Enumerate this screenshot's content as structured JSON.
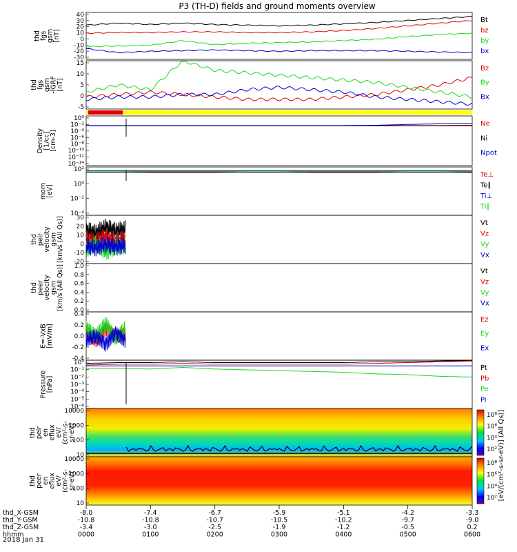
{
  "title": "P3 (TH-D) fields and ground moments overview",
  "date": "2018 Jan 31",
  "colors": {
    "black": "#000000",
    "red": "#e00000",
    "green": "#18d818",
    "blue": "#0000d0",
    "yellow": "#ffff00"
  },
  "chart_data": [
    {
      "type": "line",
      "ylabel": [
        "thd",
        "fgs",
        "gsm",
        "[nT]"
      ],
      "ylim": [
        -30,
        40
      ],
      "yticks": [
        "40",
        "30",
        "20",
        "10",
        "0",
        "-10",
        "-20",
        "-30"
      ],
      "legend": [
        "Bt",
        "bz",
        "by",
        "bx"
      ],
      "series": [
        {
          "name": "Bt",
          "color": "black",
          "values": [
            21,
            24,
            22,
            24,
            22,
            21,
            20,
            21,
            23,
            25,
            28,
            31,
            34
          ]
        },
        {
          "name": "bz",
          "color": "red",
          "values": [
            9,
            10,
            10,
            11,
            11,
            10,
            10,
            11,
            13,
            16,
            20,
            24,
            28
          ]
        },
        {
          "name": "by",
          "color": "green",
          "values": [
            -11,
            -10,
            -9,
            -2,
            -8,
            -6,
            -5,
            -4,
            -2,
            0,
            4,
            7,
            9
          ]
        },
        {
          "name": "bx",
          "color": "blue",
          "values": [
            -14,
            -20,
            -18,
            -17,
            -16,
            -17,
            -18,
            -17,
            -17,
            -17,
            -18,
            -19,
            -20
          ]
        }
      ]
    },
    {
      "type": "line",
      "ylabel": [
        "thd",
        "fgs",
        "gsm",
        "-IGRF",
        "[nT]"
      ],
      "ylim": [
        -5,
        15
      ],
      "yticks": [
        "15",
        "10",
        "5",
        "0",
        "-5"
      ],
      "legend": [
        "Bz",
        "By",
        "Bx"
      ],
      "series": [
        {
          "name": "Bz",
          "color": "red",
          "values": [
            0,
            1,
            2,
            1,
            0,
            -1,
            -1,
            -1,
            0,
            1,
            3,
            5,
            8
          ]
        },
        {
          "name": "By",
          "color": "green",
          "values": [
            2,
            5,
            3,
            15,
            11,
            10,
            9,
            8,
            7,
            6,
            4,
            2,
            0
          ]
        },
        {
          "name": "Bx",
          "color": "blue",
          "values": [
            -1,
            0,
            0,
            1,
            1,
            3,
            4,
            3,
            2,
            0,
            -1,
            -2,
            -3
          ]
        }
      ]
    },
    {
      "type": "line",
      "ylabel": [
        "Density",
        "[1/cc]",
        "[cm-3]"
      ],
      "ylim": [
        -14,
        3
      ],
      "yticks": [
        "10⁰",
        "10⁻²",
        "10⁻⁴",
        "10⁻⁶",
        "10⁻⁸",
        "10⁻¹⁰",
        "10⁻¹²",
        "10⁻¹⁴"
      ],
      "legend": [
        "Ne",
        "Ni",
        "Npot"
      ],
      "series": [
        {
          "name": "Ne",
          "color": "red",
          "values": [
            -0.3,
            -0.3,
            -0.3,
            -0.3,
            -0.3,
            -0.3,
            -0.3,
            -0.3,
            -0.3,
            -0.3,
            -0.3,
            -0.3,
            -0.2
          ]
        },
        {
          "name": "Ni",
          "color": "black",
          "values": [
            -0.4,
            -0.4,
            -0.4,
            -0.4,
            -0.4,
            -0.4,
            -0.4,
            -0.4,
            -0.4,
            -0.4,
            -0.4,
            -0.4,
            -0.4
          ]
        },
        {
          "name": "Npot",
          "color": "blue",
          "values": [
            -0.3,
            -0.3,
            -0.3,
            -0.3,
            -0.3,
            -0.3,
            -0.3,
            -0.3,
            -0.3,
            -0.2,
            0.1,
            0.3,
            0.5
          ]
        }
      ]
    },
    {
      "type": "line",
      "ylabel": [
        "mom",
        "[eV]"
      ],
      "ylim": [
        -5,
        3
      ],
      "yticks": [
        "10²",
        "10⁰",
        "10⁻²",
        "10⁻⁴"
      ],
      "legend": [
        "Te⊥",
        "Te∥",
        "Ti⊥",
        "Ti∥"
      ],
      "series": [
        {
          "name": "Te⊥",
          "color": "red",
          "values": [
            2.3,
            2.3,
            2.2,
            2.2,
            2.2,
            2.3,
            2.3,
            2.2,
            2.2,
            2.2,
            2.3,
            2.3,
            2.2
          ]
        },
        {
          "name": "Te∥",
          "color": "black",
          "values": [
            2.1,
            2.1,
            2.1,
            2.1,
            2.1,
            2.1,
            2.1,
            2.1,
            2.1,
            2.1,
            2.1,
            2.1,
            2.1
          ]
        },
        {
          "name": "Ti⊥",
          "color": "blue",
          "values": [
            2.4,
            2.4,
            2.4,
            2.4,
            2.4,
            2.4,
            2.4,
            2.4,
            2.4,
            2.4,
            2.4,
            2.4,
            2.4
          ]
        },
        {
          "name": "Ti∥",
          "color": "green",
          "values": [
            2.3,
            2.3,
            2.3,
            2.3,
            2.3,
            2.3,
            2.3,
            2.3,
            2.3,
            2.3,
            2.3,
            2.3,
            2.3
          ]
        }
      ]
    },
    {
      "type": "line",
      "ylabel": [
        "thd",
        "peir",
        "velocity",
        "gsm",
        "[km/s (All Qs)]"
      ],
      "ylim": [
        -20,
        30
      ],
      "yticks": [
        "30",
        "20",
        "10",
        "0",
        "-10",
        "-20"
      ],
      "legend": [
        "Vt",
        "Vz",
        "Vy",
        "Vx"
      ],
      "series": [
        {
          "name": "Vt",
          "color": "black",
          "values": [
            15,
            12,
            18,
            14,
            16
          ]
        },
        {
          "name": "Vz",
          "color": "red",
          "values": [
            5,
            3,
            8,
            2,
            6
          ]
        },
        {
          "name": "Vy",
          "color": "green",
          "values": [
            -5,
            0,
            -8,
            -3,
            -2
          ]
        },
        {
          "name": "Vx",
          "color": "blue",
          "values": [
            -2,
            -4,
            0,
            -3,
            -1
          ]
        }
      ]
    },
    {
      "type": "line",
      "ylabel": [
        "thd",
        "peer",
        "velocity",
        "gsm",
        "[km/s (All Qs)]"
      ],
      "ylim": [
        0,
        1
      ],
      "yticks": [
        "1.0",
        "0.8",
        "0.6",
        "0.4",
        "0.2",
        "0.0"
      ],
      "legend": [
        "Vt",
        "Vz",
        "Vy",
        "Vx"
      ],
      "series": []
    },
    {
      "type": "line",
      "ylabel": [
        "E=-VxB",
        "[mV/m]"
      ],
      "ylim": [
        -0.6,
        0.6
      ],
      "yticks": [
        "0.4",
        "0.2",
        "0.0",
        "-0.2",
        "-0.4"
      ],
      "legend": [
        "Ez",
        "Ey",
        "Ex"
      ],
      "series": [
        {
          "name": "Ez",
          "color": "red",
          "values": [
            0.1,
            -0.1,
            0.2,
            0.0,
            0.1
          ]
        },
        {
          "name": "Ey",
          "color": "green",
          "values": [
            0.2,
            0.0,
            0.3,
            -0.1,
            0.2
          ]
        },
        {
          "name": "Ex",
          "color": "blue",
          "values": [
            -0.1,
            0.0,
            -0.2,
            0.1,
            -0.1
          ]
        }
      ]
    },
    {
      "type": "line",
      "ylabel": [
        "Pressure",
        "[nPa]"
      ],
      "ylim": [
        -6,
        0
      ],
      "yticks": [
        "10⁰",
        "10⁻¹",
        "10⁻²",
        "10⁻³",
        "10⁻⁴",
        "10⁻⁵",
        "10⁻⁶"
      ],
      "legend": [
        "Pt",
        "Pb",
        "Pe",
        "Pi"
      ],
      "series": [
        {
          "name": "Pt",
          "color": "black",
          "values": [
            -0.4,
            -0.3,
            -0.3,
            -0.2,
            -0.3,
            -0.3,
            -0.3,
            -0.3,
            -0.3,
            -0.2,
            -0.2,
            -0.1,
            0
          ]
        },
        {
          "name": "Pb",
          "color": "red",
          "values": [
            -0.6,
            -0.5,
            -0.5,
            -0.4,
            -0.5,
            -0.5,
            -0.5,
            -0.5,
            -0.5,
            -0.4,
            -0.3,
            -0.2,
            -0.1
          ]
        },
        {
          "name": "Pe",
          "color": "green",
          "values": [
            -1.0,
            -1.0,
            -1.1,
            -0.9,
            -1.1,
            -1.2,
            -1.3,
            -1.4,
            -1.5,
            -1.7,
            -1.8,
            -2.0,
            -2.1
          ]
        },
        {
          "name": "Pi",
          "color": "blue",
          "values": [
            -0.7,
            -0.7,
            -0.7,
            -0.7,
            -0.7,
            -0.7,
            -0.7,
            -0.7,
            -0.7,
            -0.7,
            -0.7,
            -0.7,
            -0.7
          ]
        }
      ]
    },
    {
      "type": "heatmap",
      "ylabel": [
        "thd",
        "peir",
        "en",
        "eflux",
        "eV/",
        "(cm²-s-",
        "sr-eV)"
      ],
      "yticks": [
        "10000",
        "1000",
        "100",
        "10"
      ],
      "colorbar_ticks": [
        "10⁸",
        "10⁶",
        "10⁴",
        "10²"
      ]
    },
    {
      "type": "heatmap",
      "ylabel": [
        "thd",
        "peer",
        "en",
        "eflux",
        "eV/",
        "(cm²-s-",
        "sr-eV)"
      ],
      "yticks": [
        "10000",
        "1000",
        "100",
        "10"
      ],
      "colorbar_ticks": [
        "10⁸",
        "10⁶",
        "10⁴",
        "10²"
      ]
    }
  ],
  "colorbar_label": "[eV/(cm²-s-sr-eV)] (All Qs)]",
  "x_axis": {
    "rows": [
      {
        "label": "thd_X-GSM",
        "values": [
          "-8.0",
          "-7.4",
          "-6.7",
          "-5.9",
          "-5.1",
          "-4.2",
          "-3.3"
        ]
      },
      {
        "label": "thd_Y-GSM",
        "values": [
          "-10.8",
          "-10.8",
          "-10.7",
          "-10.5",
          "-10.2",
          "-9.7",
          "-9.0"
        ]
      },
      {
        "label": "thd_Z-GSM",
        "values": [
          "-3.4",
          "-3.0",
          "-2.5",
          "-1.9",
          "-1.2",
          "-0.5",
          "0.2"
        ]
      },
      {
        "label": "hhmm",
        "values": [
          "0000",
          "0100",
          "0200",
          "0300",
          "0400",
          "0500",
          "0600"
        ]
      }
    ]
  }
}
